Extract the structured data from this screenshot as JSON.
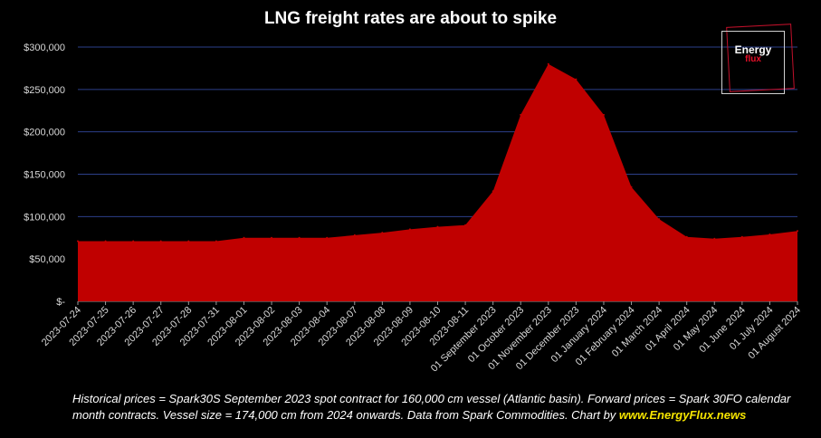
{
  "chart_data": {
    "type": "area",
    "title": "LNG freight rates are about to spike",
    "xlabel": "",
    "ylabel": "",
    "ylim": [
      0,
      300000
    ],
    "y_ticks": [
      0,
      50000,
      100000,
      150000,
      200000,
      250000,
      300000
    ],
    "y_tick_labels": [
      "$-",
      "$50,000",
      "$100,000",
      "$150,000",
      "$200,000",
      "$250,000",
      "$300,000"
    ],
    "grid": true,
    "legend": "none",
    "colors": {
      "fill": "#c00000",
      "grid": "#2c3f8a",
      "background": "#000000",
      "text": "#d8d8d8"
    },
    "categories": [
      "2023-07-24",
      "2023-07-25",
      "2023-07-26",
      "2023-07-27",
      "2023-07-28",
      "2023-07-31",
      "2023-08-01",
      "2023-08-02",
      "2023-08-03",
      "2023-08-04",
      "2023-08-07",
      "2023-08-08",
      "2023-08-09",
      "2023-08-10",
      "2023-08-11",
      "01 September 2023",
      "01 October 2023",
      "01 November 2023",
      "01 December 2023",
      "01 January 2024",
      "01 February 2024",
      "01 March 2024",
      "01 April 2024",
      "01 May 2024",
      "01 June 2024",
      "01 July 2024",
      "01 August 2024"
    ],
    "series": [
      {
        "values": [
          71000,
          71000,
          71000,
          71000,
          71000,
          71000,
          75000,
          75000,
          75000,
          75000,
          78000,
          81000,
          85000,
          88000,
          90000,
          130000,
          220000,
          280000,
          262000,
          220000,
          135000,
          97000,
          76000,
          74000,
          76000,
          79000,
          83000
        ]
      }
    ]
  },
  "logo": {
    "word1": "Energy",
    "word2": "flux"
  },
  "footnote": {
    "text": "Historical prices = Spark30S September 2023  spot contract for 160,000  cm vessel (Atlantic basin). Forward prices = Spark 30FO calendar month contracts. Vessel size = 174,000  cm from 2024  onwards. Data from Spark Commodities. Chart by ",
    "link": "www.EnergyFlux.news"
  }
}
